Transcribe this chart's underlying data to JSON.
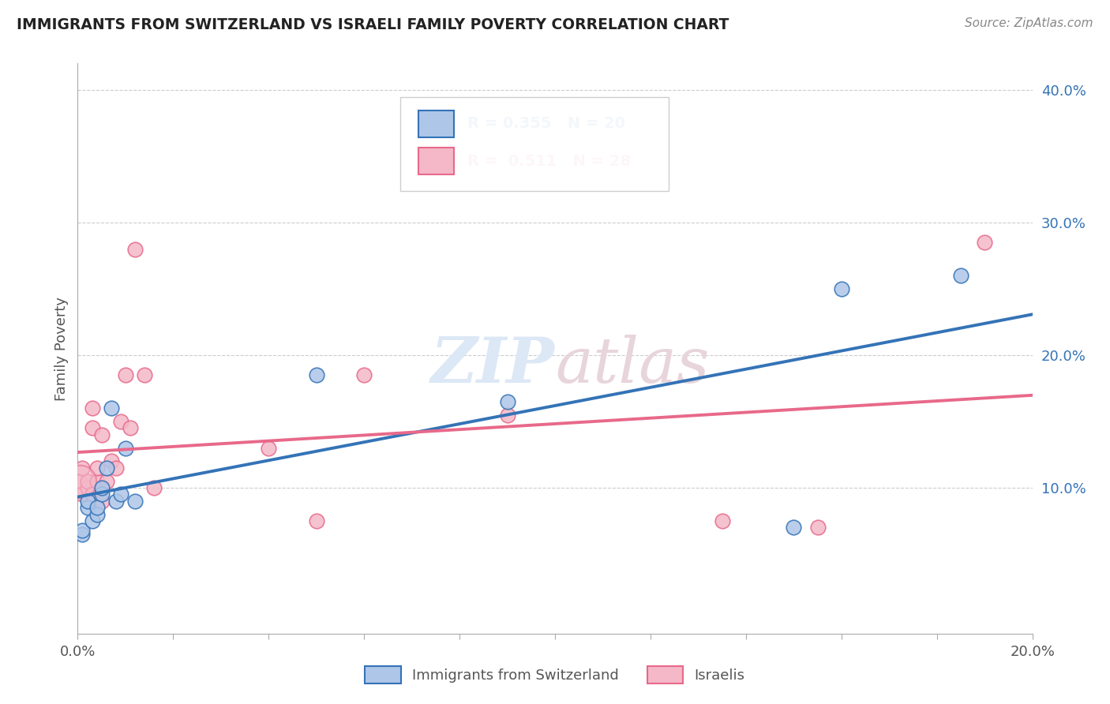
{
  "title": "IMMIGRANTS FROM SWITZERLAND VS ISRAELI FAMILY POVERTY CORRELATION CHART",
  "source": "Source: ZipAtlas.com",
  "ylabel": "Family Poverty",
  "r_blue": 0.355,
  "n_blue": 20,
  "r_pink": 0.511,
  "n_pink": 28,
  "blue_color": "#aec6e8",
  "pink_color": "#f4b8c8",
  "blue_line_color": "#3473b7",
  "pink_line_color": "#e8698a",
  "background_color": "#ffffff",
  "blue_scatter_x": [
    0.001,
    0.001,
    0.002,
    0.002,
    0.003,
    0.004,
    0.004,
    0.005,
    0.005,
    0.006,
    0.007,
    0.008,
    0.009,
    0.01,
    0.012,
    0.05,
    0.09,
    0.15,
    0.16,
    0.185
  ],
  "blue_scatter_y": [
    0.065,
    0.068,
    0.085,
    0.09,
    0.075,
    0.08,
    0.085,
    0.095,
    0.1,
    0.115,
    0.16,
    0.09,
    0.095,
    0.13,
    0.09,
    0.185,
    0.165,
    0.07,
    0.25,
    0.26
  ],
  "pink_scatter_x": [
    0.0005,
    0.001,
    0.001,
    0.002,
    0.002,
    0.003,
    0.003,
    0.003,
    0.004,
    0.004,
    0.005,
    0.005,
    0.006,
    0.007,
    0.008,
    0.009,
    0.01,
    0.011,
    0.012,
    0.014,
    0.016,
    0.04,
    0.05,
    0.06,
    0.09,
    0.135,
    0.155,
    0.19
  ],
  "pink_scatter_x_large": [
    0.0005
  ],
  "pink_scatter_y_large": [
    0.105
  ],
  "pink_scatter_y": [
    0.105,
    0.095,
    0.115,
    0.1,
    0.105,
    0.095,
    0.145,
    0.16,
    0.105,
    0.115,
    0.09,
    0.14,
    0.105,
    0.12,
    0.115,
    0.15,
    0.185,
    0.145,
    0.28,
    0.185,
    0.1,
    0.13,
    0.075,
    0.185,
    0.155,
    0.075,
    0.07,
    0.285
  ],
  "xlim": [
    0.0,
    0.2
  ],
  "ylim": [
    -0.01,
    0.42
  ],
  "yticks_right": [
    0.1,
    0.2,
    0.3,
    0.4
  ],
  "ytick_labels_right": [
    "10.0%",
    "20.0%",
    "30.0%",
    "40.0%"
  ],
  "legend_label_blue": "Immigrants from Switzerland",
  "legend_label_pink": "Israelis"
}
